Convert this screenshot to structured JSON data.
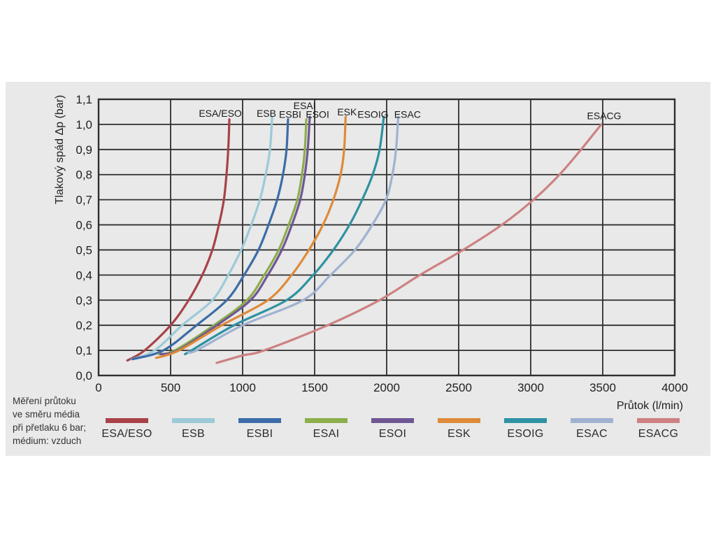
{
  "note": {
    "lines": [
      "Měření průtoku",
      "ve směru média",
      "při přetlaku 6 bar;",
      "médium: vzduch"
    ]
  },
  "colors": {
    "panel_background": "#e8e9e8",
    "grid": "#2e2e2e",
    "text": "#1f1f1f"
  },
  "chart_data": {
    "type": "line",
    "title": "",
    "xlabel": "Průtok (l/min)",
    "ylabel": "Tlakový spád Δp (bar)",
    "xlim": [
      0,
      4000
    ],
    "ylim": [
      0,
      1.1
    ],
    "grid": true,
    "legend_position": "bottom",
    "x_ticks": [
      0,
      500,
      1000,
      1500,
      2000,
      2500,
      3000,
      3500,
      4000
    ],
    "x_tick_labels": [
      "0",
      "500",
      "1000",
      "1500",
      "2000",
      "2500",
      "3000",
      "3500",
      "4000"
    ],
    "y_ticks": [
      0,
      0.1,
      0.2,
      0.3,
      0.4,
      0.5,
      0.6,
      0.7,
      0.8,
      0.9,
      1.0,
      1.1
    ],
    "y_tick_labels": [
      "0,0",
      "0,1",
      "0,2",
      "0,3",
      "0,4",
      "0,5",
      "0,6",
      "0,7",
      "0,8",
      "0,9",
      "1,0",
      "1,1"
    ],
    "series": [
      {
        "name": "ESA/ESO",
        "color": "#a84248",
        "label_x": 845,
        "label_y": 1.045,
        "points": [
          [
            200,
            0.06
          ],
          [
            320,
            0.1
          ],
          [
            500,
            0.2
          ],
          [
            625,
            0.3
          ],
          [
            720,
            0.4
          ],
          [
            790,
            0.5
          ],
          [
            835,
            0.6
          ],
          [
            870,
            0.7
          ],
          [
            888,
            0.8
          ],
          [
            900,
            0.9
          ],
          [
            908,
            1.02
          ]
        ]
      },
      {
        "name": "ESB",
        "color": "#9ccad8",
        "label_x": 1165,
        "label_y": 1.045,
        "points": [
          [
            230,
            0.065
          ],
          [
            390,
            0.1
          ],
          [
            580,
            0.2
          ],
          [
            790,
            0.3
          ],
          [
            900,
            0.4
          ],
          [
            990,
            0.5
          ],
          [
            1060,
            0.6
          ],
          [
            1120,
            0.7
          ],
          [
            1160,
            0.8
          ],
          [
            1190,
            0.9
          ],
          [
            1205,
            1.03
          ]
        ]
      },
      {
        "name": "ESBI",
        "color": "#3c6ca8",
        "label_x": 1330,
        "label_y": 1.04,
        "points": [
          [
            235,
            0.065
          ],
          [
            450,
            0.1
          ],
          [
            680,
            0.2
          ],
          [
            890,
            0.3
          ],
          [
            1010,
            0.4
          ],
          [
            1110,
            0.5
          ],
          [
            1180,
            0.6
          ],
          [
            1240,
            0.7
          ],
          [
            1280,
            0.8
          ],
          [
            1305,
            0.9
          ],
          [
            1315,
            1.02
          ]
        ]
      },
      {
        "name": "ESAI",
        "color": "#8cae4b",
        "label_x": 1430,
        "label_y": 1.075,
        "points": [
          [
            420,
            0.085
          ],
          [
            530,
            0.1
          ],
          [
            800,
            0.2
          ],
          [
            1030,
            0.3
          ],
          [
            1150,
            0.4
          ],
          [
            1250,
            0.5
          ],
          [
            1320,
            0.6
          ],
          [
            1380,
            0.7
          ],
          [
            1412,
            0.8
          ],
          [
            1432,
            0.9
          ],
          [
            1442,
            1.02
          ]
        ]
      },
      {
        "name": "ESOI",
        "color": "#6f5694",
        "label_x": 1520,
        "label_y": 1.04,
        "points": [
          [
            430,
            0.085
          ],
          [
            550,
            0.1
          ],
          [
            820,
            0.2
          ],
          [
            1055,
            0.3
          ],
          [
            1175,
            0.4
          ],
          [
            1272,
            0.5
          ],
          [
            1342,
            0.6
          ],
          [
            1400,
            0.7
          ],
          [
            1432,
            0.8
          ],
          [
            1452,
            0.9
          ],
          [
            1466,
            1.03
          ]
        ]
      },
      {
        "name": "ESK",
        "color": "#de8a3a",
        "label_x": 1725,
        "label_y": 1.05,
        "points": [
          [
            400,
            0.07
          ],
          [
            560,
            0.1
          ],
          [
            855,
            0.2
          ],
          [
            1175,
            0.3
          ],
          [
            1340,
            0.4
          ],
          [
            1460,
            0.5
          ],
          [
            1558,
            0.6
          ],
          [
            1630,
            0.7
          ],
          [
            1680,
            0.8
          ],
          [
            1705,
            0.9
          ],
          [
            1715,
            1.03
          ]
        ]
      },
      {
        "name": "ESOIG",
        "color": "#2e92a2",
        "label_x": 1905,
        "label_y": 1.04,
        "points": [
          [
            600,
            0.085
          ],
          [
            645,
            0.1
          ],
          [
            940,
            0.2
          ],
          [
            1305,
            0.3
          ],
          [
            1490,
            0.4
          ],
          [
            1630,
            0.5
          ],
          [
            1742,
            0.6
          ],
          [
            1830,
            0.7
          ],
          [
            1903,
            0.8
          ],
          [
            1951,
            0.9
          ],
          [
            1980,
            1.03
          ]
        ]
      },
      {
        "name": "ESAC",
        "color": "#a0b2d2",
        "label_x": 2145,
        "label_y": 1.04,
        "points": [
          [
            620,
            0.095
          ],
          [
            680,
            0.1
          ],
          [
            1000,
            0.2
          ],
          [
            1420,
            0.3
          ],
          [
            1610,
            0.4
          ],
          [
            1780,
            0.5
          ],
          [
            1900,
            0.6
          ],
          [
            1995,
            0.7
          ],
          [
            2040,
            0.8
          ],
          [
            2065,
            0.9
          ],
          [
            2080,
            1.03
          ]
        ]
      },
      {
        "name": "ESACG",
        "color": "#cd8182",
        "label_x": 3510,
        "label_y": 1.035,
        "points": [
          [
            820,
            0.05
          ],
          [
            1000,
            0.08
          ],
          [
            1150,
            0.1
          ],
          [
            1590,
            0.2
          ],
          [
            1950,
            0.3
          ],
          [
            2230,
            0.4
          ],
          [
            2530,
            0.5
          ],
          [
            2800,
            0.6
          ],
          [
            3020,
            0.7
          ],
          [
            3200,
            0.8
          ],
          [
            3350,
            0.9
          ],
          [
            3490,
            1.0
          ]
        ]
      }
    ]
  }
}
